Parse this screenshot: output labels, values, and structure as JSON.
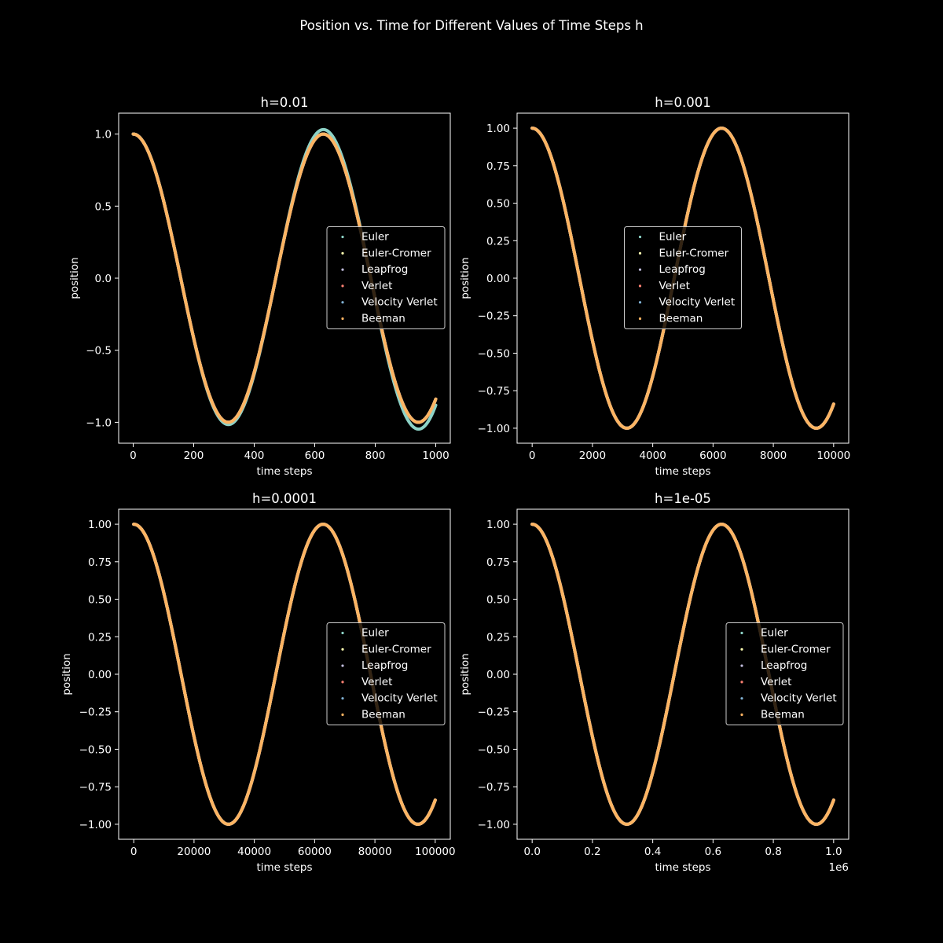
{
  "figure": {
    "title": "Position vs. Time for Different Values of Time Steps h",
    "background": "#000000",
    "foreground": "#ffffff"
  },
  "chart_data": [
    {
      "type": "scatter",
      "title": "h=0.01",
      "xlabel": "time steps",
      "ylabel": "position",
      "xlim": [
        -48,
        1048
      ],
      "ylim": [
        -1.145,
        1.145
      ],
      "xticks": [
        0,
        200,
        400,
        600,
        800,
        1000
      ],
      "xtick_labels": [
        "0",
        "200",
        "400",
        "600",
        "800",
        "1000"
      ],
      "yticks": [
        -1.0,
        -0.5,
        0.0,
        0.5,
        1.0
      ],
      "ytick_labels": [
        "−1.0",
        "−0.5",
        "0.0",
        "0.5",
        "1.0"
      ],
      "x_offset_label": "",
      "legend_location": "center right",
      "model": {
        "n": 1000,
        "omega_per_step": 0.01
      },
      "series": [
        {
          "name": "Euler",
          "color": "#8dd3c7",
          "amplitude_growth_per_step": 4.9e-05
        },
        {
          "name": "Euler-Cromer",
          "color": "#ffffb3",
          "amplitude_growth_per_step": 0
        },
        {
          "name": "Leapfrog",
          "color": "#bebada",
          "amplitude_growth_per_step": 0
        },
        {
          "name": "Verlet",
          "color": "#fb8072",
          "amplitude_growth_per_step": 0
        },
        {
          "name": "Velocity Verlet",
          "color": "#80b1d3",
          "amplitude_growth_per_step": 0
        },
        {
          "name": "Beeman",
          "color": "#fdb462",
          "amplitude_growth_per_step": 0
        }
      ]
    },
    {
      "type": "scatter",
      "title": "h=0.001",
      "xlabel": "time steps",
      "ylabel": "position",
      "xlim": [
        -500,
        10500
      ],
      "ylim": [
        -1.1,
        1.1
      ],
      "xticks": [
        0,
        2000,
        4000,
        6000,
        8000,
        10000
      ],
      "xtick_labels": [
        "0",
        "2000",
        "4000",
        "6000",
        "8000",
        "10000"
      ],
      "yticks": [
        -1.0,
        -0.75,
        -0.5,
        -0.25,
        0.0,
        0.25,
        0.5,
        0.75,
        1.0
      ],
      "ytick_labels": [
        "−1.00",
        "−0.75",
        "−0.50",
        "−0.25",
        "0.00",
        "0.25",
        "0.50",
        "0.75",
        "1.00"
      ],
      "x_offset_label": "",
      "legend_location": "center",
      "model": {
        "n": 10000,
        "omega_per_step": 0.001
      },
      "series": [
        {
          "name": "Euler",
          "color": "#8dd3c7",
          "amplitude_growth_per_step": 0
        },
        {
          "name": "Euler-Cromer",
          "color": "#ffffb3",
          "amplitude_growth_per_step": 0
        },
        {
          "name": "Leapfrog",
          "color": "#bebada",
          "amplitude_growth_per_step": 0
        },
        {
          "name": "Verlet",
          "color": "#fb8072",
          "amplitude_growth_per_step": 0
        },
        {
          "name": "Velocity Verlet",
          "color": "#80b1d3",
          "amplitude_growth_per_step": 0
        },
        {
          "name": "Beeman",
          "color": "#fdb462",
          "amplitude_growth_per_step": 0
        }
      ]
    },
    {
      "type": "scatter",
      "title": "h=0.0001",
      "xlabel": "time steps",
      "ylabel": "position",
      "xlim": [
        -5000,
        105000
      ],
      "ylim": [
        -1.1,
        1.1
      ],
      "xticks": [
        0,
        20000,
        40000,
        60000,
        80000,
        100000
      ],
      "xtick_labels": [
        "0",
        "20000",
        "40000",
        "60000",
        "80000",
        "100000"
      ],
      "yticks": [
        -1.0,
        -0.75,
        -0.5,
        -0.25,
        0.0,
        0.25,
        0.5,
        0.75,
        1.0
      ],
      "ytick_labels": [
        "−1.00",
        "−0.75",
        "−0.50",
        "−0.25",
        "0.00",
        "0.25",
        "0.50",
        "0.75",
        "1.00"
      ],
      "x_offset_label": "",
      "legend_location": "center right",
      "model": {
        "n": 100000,
        "omega_per_step": 0.0001
      },
      "series": [
        {
          "name": "Euler",
          "color": "#8dd3c7",
          "amplitude_growth_per_step": 0
        },
        {
          "name": "Euler-Cromer",
          "color": "#ffffb3",
          "amplitude_growth_per_step": 0
        },
        {
          "name": "Leapfrog",
          "color": "#bebada",
          "amplitude_growth_per_step": 0
        },
        {
          "name": "Verlet",
          "color": "#fb8072",
          "amplitude_growth_per_step": 0
        },
        {
          "name": "Velocity Verlet",
          "color": "#80b1d3",
          "amplitude_growth_per_step": 0
        },
        {
          "name": "Beeman",
          "color": "#fdb462",
          "amplitude_growth_per_step": 0
        }
      ]
    },
    {
      "type": "scatter",
      "title": "h=1e-05",
      "xlabel": "time steps",
      "ylabel": "position",
      "xlim": [
        -50000,
        1050000
      ],
      "ylim": [
        -1.1,
        1.1
      ],
      "xticks": [
        0,
        200000,
        400000,
        600000,
        800000,
        1000000
      ],
      "xtick_labels": [
        "0.0",
        "0.2",
        "0.4",
        "0.6",
        "0.8",
        "1.0"
      ],
      "yticks": [
        -1.0,
        -0.75,
        -0.5,
        -0.25,
        0.0,
        0.25,
        0.5,
        0.75,
        1.0
      ],
      "ytick_labels": [
        "−1.00",
        "−0.75",
        "−0.50",
        "−0.25",
        "0.00",
        "0.25",
        "0.50",
        "0.75",
        "1.00"
      ],
      "x_offset_label": "1e6",
      "legend_location": "center right",
      "model": {
        "n": 1000000,
        "omega_per_step": 1e-05
      },
      "series": [
        {
          "name": "Euler",
          "color": "#8dd3c7",
          "amplitude_growth_per_step": 0
        },
        {
          "name": "Euler-Cromer",
          "color": "#ffffb3",
          "amplitude_growth_per_step": 0
        },
        {
          "name": "Leapfrog",
          "color": "#bebada",
          "amplitude_growth_per_step": 0
        },
        {
          "name": "Verlet",
          "color": "#fb8072",
          "amplitude_growth_per_step": 0
        },
        {
          "name": "Velocity Verlet",
          "color": "#80b1d3",
          "amplitude_growth_per_step": 0
        },
        {
          "name": "Beeman",
          "color": "#fdb462",
          "amplitude_growth_per_step": 0
        }
      ]
    }
  ]
}
